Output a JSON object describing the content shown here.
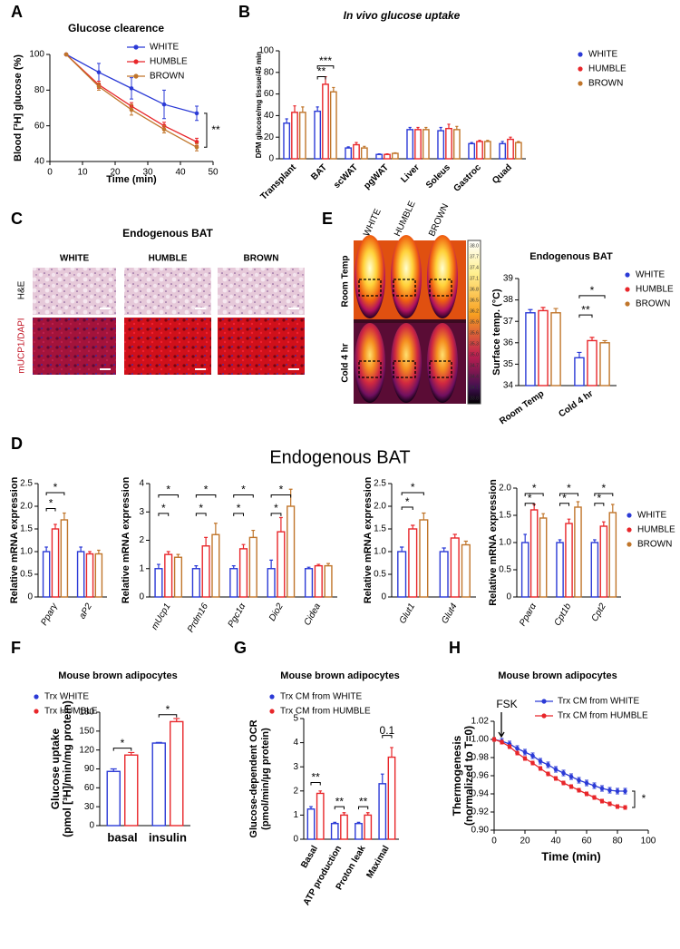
{
  "panel_labels": [
    "A",
    "B",
    "C",
    "D",
    "E",
    "F",
    "G",
    "H"
  ],
  "histology": {
    "title": "Endogenous BAT",
    "columns": [
      "WHITE",
      "HUMBLE",
      "BROWN"
    ],
    "rows": [
      "H&E",
      "mUCP1/DAPI"
    ]
  },
  "thermal": {
    "columns": [
      "WHITE",
      "HUMBLE",
      "BROWN"
    ],
    "rows": [
      "Room Temp",
      "Cold 4 hr"
    ],
    "scale": [
      "38.0",
      "37.7",
      "37.4",
      "37.1",
      "36.8",
      "36.5",
      "36.2",
      "35.9",
      "35.6",
      "35.3",
      "35.0",
      "34.7",
      "34.4",
      "34.1",
      "33.8"
    ]
  },
  "section_title": "Endogenous BAT",
  "chart_data": [
    {
      "type": "line",
      "title": "Glucose clearence",
      "x": [
        5,
        15,
        25,
        35,
        45
      ],
      "xlim": [
        0,
        50
      ],
      "xticks": [
        0,
        10,
        20,
        30,
        40,
        50
      ],
      "ylim": [
        40,
        100
      ],
      "yticks": [
        40,
        60,
        80,
        100
      ],
      "x_label": "Time (min)",
      "y_label": "Blood [³H] glucose (%)",
      "legend": "upper right",
      "series": [
        {
          "name": "WHITE",
          "color": "#2b3ad6",
          "values": [
            100,
            90,
            81,
            72,
            67
          ],
          "errors": [
            0,
            5,
            6,
            8,
            4
          ]
        },
        {
          "name": "HUMBLE",
          "color": "#e8262a",
          "values": [
            100,
            83,
            71,
            60,
            51
          ],
          "errors": [
            0,
            2,
            2,
            2,
            2
          ]
        },
        {
          "name": "BROWN",
          "color": "#c0752a",
          "values": [
            100,
            82,
            69,
            58,
            48
          ],
          "errors": [
            0,
            2,
            3,
            2,
            2
          ]
        }
      ],
      "annotations": [
        "**"
      ]
    },
    {
      "type": "bar",
      "title": "In vivo glucose uptake",
      "categories": [
        "Transplant",
        "BAT",
        "scWAT",
        "pgWAT",
        "Liver",
        "Soleus",
        "Gastroc",
        "Quad"
      ],
      "ylim": [
        0,
        100
      ],
      "yticks": [
        0,
        20,
        40,
        60,
        80,
        100
      ],
      "y_label": "DPM glucose/mg tissue/45 min",
      "legend": "right",
      "series": [
        {
          "name": "WHITE",
          "color": "#2b3ad6",
          "values": [
            33,
            44,
            10,
            4,
            27,
            26,
            14,
            14
          ],
          "errors": [
            4,
            4,
            1,
            0.5,
            2,
            3,
            1,
            2
          ]
        },
        {
          "name": "HUMBLE",
          "color": "#e8262a",
          "values": [
            43,
            69,
            13,
            4,
            27,
            28,
            16,
            18
          ],
          "errors": [
            6,
            7,
            2,
            0.5,
            2,
            4,
            1,
            2
          ]
        },
        {
          "name": "BROWN",
          "color": "#c0752a",
          "values": [
            43,
            62,
            10,
            5,
            27,
            27,
            16,
            15
          ],
          "errors": [
            5,
            4,
            1.5,
            0.5,
            2,
            3,
            1,
            1
          ]
        }
      ],
      "annotations": [
        "***",
        "**"
      ]
    },
    {
      "type": "bar",
      "title": "Endogenous BAT",
      "categories": [
        "Room Temp",
        "Cold 4 hr"
      ],
      "ylim": [
        34,
        39
      ],
      "yticks": [
        34,
        35,
        36,
        37,
        38,
        39
      ],
      "y_label": "Surface temp. (°C)",
      "legend": "right",
      "series": [
        {
          "name": "WHITE",
          "color": "#2b3ad6",
          "values": [
            37.4,
            35.3
          ],
          "errors": [
            0.15,
            0.25
          ]
        },
        {
          "name": "HUMBLE",
          "color": "#e8262a",
          "values": [
            37.5,
            36.1
          ],
          "errors": [
            0.15,
            0.15
          ]
        },
        {
          "name": "BROWN",
          "color": "#c0752a",
          "values": [
            37.4,
            36.0
          ],
          "errors": [
            0.2,
            0.1
          ]
        }
      ],
      "annotations": [
        "*",
        "**"
      ]
    },
    {
      "type": "bar",
      "categories": [
        "Pparγ",
        "aP2"
      ],
      "ylim": [
        0,
        2.5
      ],
      "yticks": [
        0,
        0.5,
        {
          "value": 1,
          "label": "1.0"
        },
        1.5,
        {
          "value": 2,
          "label": "2.0"
        },
        2.5
      ],
      "y_label": "Relative mRNA expression",
      "series": [
        {
          "color": "#2b3ad6",
          "values": [
            1.0,
            1.0
          ],
          "errors": [
            0.1,
            0.1
          ]
        },
        {
          "color": "#e8262a",
          "values": [
            1.5,
            0.95
          ],
          "errors": [
            0.1,
            0.05
          ]
        },
        {
          "color": "#c0752a",
          "values": [
            1.7,
            0.95
          ],
          "errors": [
            0.15,
            0.08
          ]
        }
      ],
      "annotations": [
        "*",
        "*"
      ]
    },
    {
      "type": "bar",
      "categories": [
        "mUcp1",
        "Prdm16",
        "Pgc1α",
        "Dio2",
        "Cidea"
      ],
      "ylim": [
        0,
        4
      ],
      "yticks": [
        0,
        1,
        2,
        3,
        4
      ],
      "y_label": "Relative mRNA expression",
      "series": [
        {
          "color": "#2b3ad6",
          "values": [
            1.0,
            1.0,
            1.0,
            1.0,
            1.0
          ],
          "errors": [
            0.15,
            0.1,
            0.1,
            0.3,
            0.05
          ]
        },
        {
          "color": "#e8262a",
          "values": [
            1.5,
            1.8,
            1.7,
            2.3,
            1.1
          ],
          "errors": [
            0.1,
            0.3,
            0.15,
            0.5,
            0.05
          ]
        },
        {
          "color": "#c0752a",
          "values": [
            1.4,
            2.2,
            2.1,
            3.2,
            1.1
          ],
          "errors": [
            0.1,
            0.4,
            0.25,
            0.6,
            0.08
          ]
        }
      ],
      "annotations": [
        "*",
        "*",
        "*",
        "*",
        "*",
        "*",
        "*",
        "*"
      ]
    },
    {
      "type": "bar",
      "categories": [
        "Glut1",
        "Glut4"
      ],
      "ylim": [
        0,
        2.5
      ],
      "yticks": [
        0,
        0.5,
        {
          "value": 1,
          "label": "1.0"
        },
        1.5,
        {
          "value": 2,
          "label": "2.0"
        },
        2.5
      ],
      "y_label": "Relative mRNA expression",
      "series": [
        {
          "color": "#2b3ad6",
          "values": [
            1.0,
            1.0
          ],
          "errors": [
            0.1,
            0.08
          ]
        },
        {
          "color": "#e8262a",
          "values": [
            1.5,
            1.3
          ],
          "errors": [
            0.08,
            0.08
          ]
        },
        {
          "color": "#c0752a",
          "values": [
            1.7,
            1.15
          ],
          "errors": [
            0.15,
            0.08
          ]
        }
      ],
      "annotations": [
        "*",
        "*"
      ]
    },
    {
      "type": "bar",
      "categories": [
        "Pparα",
        "Cpt1b",
        "Cpt2"
      ],
      "ylim": [
        0,
        2
      ],
      "yticks": [
        0,
        0.5,
        {
          "value": 1,
          "label": "1.0"
        },
        1.5,
        {
          "value": 2,
          "label": "2.0"
        }
      ],
      "y_label": "Relative mRNA expression",
      "legend": "right",
      "series": [
        {
          "name": "WHITE",
          "color": "#2b3ad6",
          "values": [
            1.0,
            1.0,
            1.0
          ],
          "errors": [
            0.15,
            0.05,
            0.05
          ]
        },
        {
          "name": "HUMBLE",
          "color": "#e8262a",
          "values": [
            1.6,
            1.35,
            1.3
          ],
          "errors": [
            0.1,
            0.08,
            0.08
          ]
        },
        {
          "name": "BROWN",
          "color": "#c0752a",
          "values": [
            1.45,
            1.65,
            1.55
          ],
          "errors": [
            0.08,
            0.1,
            0.15
          ]
        }
      ],
      "annotations": [
        "*",
        "*",
        "*",
        "*",
        "*",
        "*"
      ]
    },
    {
      "type": "bar",
      "title": "Mouse brown adipocytes",
      "categories": [
        "basal",
        "insulin"
      ],
      "ylim": [
        0,
        180
      ],
      "yticks": [
        0,
        30,
        60,
        90,
        120,
        150,
        180
      ],
      "y_label": [
        "Glucose uptake",
        "(pmol [³H]/min/mg protein)"
      ],
      "legend": "upper left",
      "series": [
        {
          "name": "Trx WHITE",
          "color": "#2b3ad6",
          "values": [
            86,
            131
          ],
          "errors": [
            4,
            1
          ]
        },
        {
          "name": "Trx HUMBLE",
          "color": "#e8262a",
          "values": [
            112,
            165
          ],
          "errors": [
            4,
            5
          ]
        }
      ],
      "annotations": [
        "*",
        "*"
      ]
    },
    {
      "type": "bar",
      "title": "Mouse brown adipocytes",
      "categories": [
        "Basal",
        "ATP production",
        "Proton leak",
        "Maximal"
      ],
      "ylim": [
        0,
        5
      ],
      "yticks": [
        0,
        1,
        2,
        3,
        4,
        5
      ],
      "y_label": [
        "Glucose-dependent OCR",
        "(pmol/min/µg protein)"
      ],
      "legend": "upper left",
      "series": [
        {
          "name": "Trx CM from WHITE",
          "color": "#2b3ad6",
          "values": [
            1.25,
            0.65,
            0.65,
            2.3
          ],
          "errors": [
            0.1,
            0.05,
            0.05,
            0.4
          ]
        },
        {
          "name": "Trx CM from HUMBLE",
          "color": "#e8262a",
          "values": [
            1.9,
            1.0,
            1.0,
            3.4
          ],
          "errors": [
            0.1,
            0.1,
            0.1,
            0.4
          ]
        }
      ],
      "annotations": [
        "**",
        "**",
        "**",
        "0.1"
      ]
    },
    {
      "type": "line",
      "title": "Mouse brown adipocytes",
      "x": [
        0,
        5,
        10,
        15,
        20,
        25,
        30,
        35,
        40,
        45,
        50,
        55,
        60,
        65,
        70,
        75,
        80,
        85
      ],
      "xlim": [
        0,
        100
      ],
      "xticks": [
        0,
        20,
        40,
        60,
        80,
        100
      ],
      "ylim": [
        0.9,
        1.02
      ],
      "yticks": [
        {
          "value": 0.9,
          "label": "0.90"
        },
        0.92,
        0.94,
        0.96,
        0.98,
        {
          "value": 1,
          "label": "1.00"
        },
        1.02
      ],
      "x_label": "Time (min)",
      "y_label": [
        "Thermogenesis",
        "(normalized to T=0)"
      ],
      "legend": "upper right",
      "series": [
        {
          "name": "Trx CM from WHITE",
          "color": "#2b3ad6",
          "values": [
            1.0,
            0.998,
            0.995,
            0.99,
            0.986,
            0.982,
            0.976,
            0.972,
            0.967,
            0.963,
            0.959,
            0.955,
            0.952,
            0.949,
            0.946,
            0.944,
            0.943,
            0.943
          ],
          "errors": [
            0.002,
            0.003,
            0.003,
            0.003,
            0.003,
            0.003,
            0.003,
            0.003,
            0.003,
            0.003,
            0.003,
            0.003,
            0.003,
            0.003,
            0.003,
            0.003,
            0.003,
            0.003
          ]
        },
        {
          "name": "Trx CM from HUMBLE",
          "color": "#e8262a",
          "values": [
            1.0,
            0.997,
            0.992,
            0.985,
            0.979,
            0.974,
            0.968,
            0.962,
            0.957,
            0.952,
            0.948,
            0.944,
            0.94,
            0.936,
            0.932,
            0.929,
            0.926,
            0.925
          ],
          "errors": [
            0.002,
            0.002,
            0.002,
            0.002,
            0.002,
            0.002,
            0.002,
            0.002,
            0.002,
            0.002,
            0.002,
            0.002,
            0.002,
            0.002,
            0.002,
            0.002,
            0.002,
            0.002
          ]
        }
      ],
      "annotations": [
        "FSK",
        "*"
      ]
    }
  ]
}
